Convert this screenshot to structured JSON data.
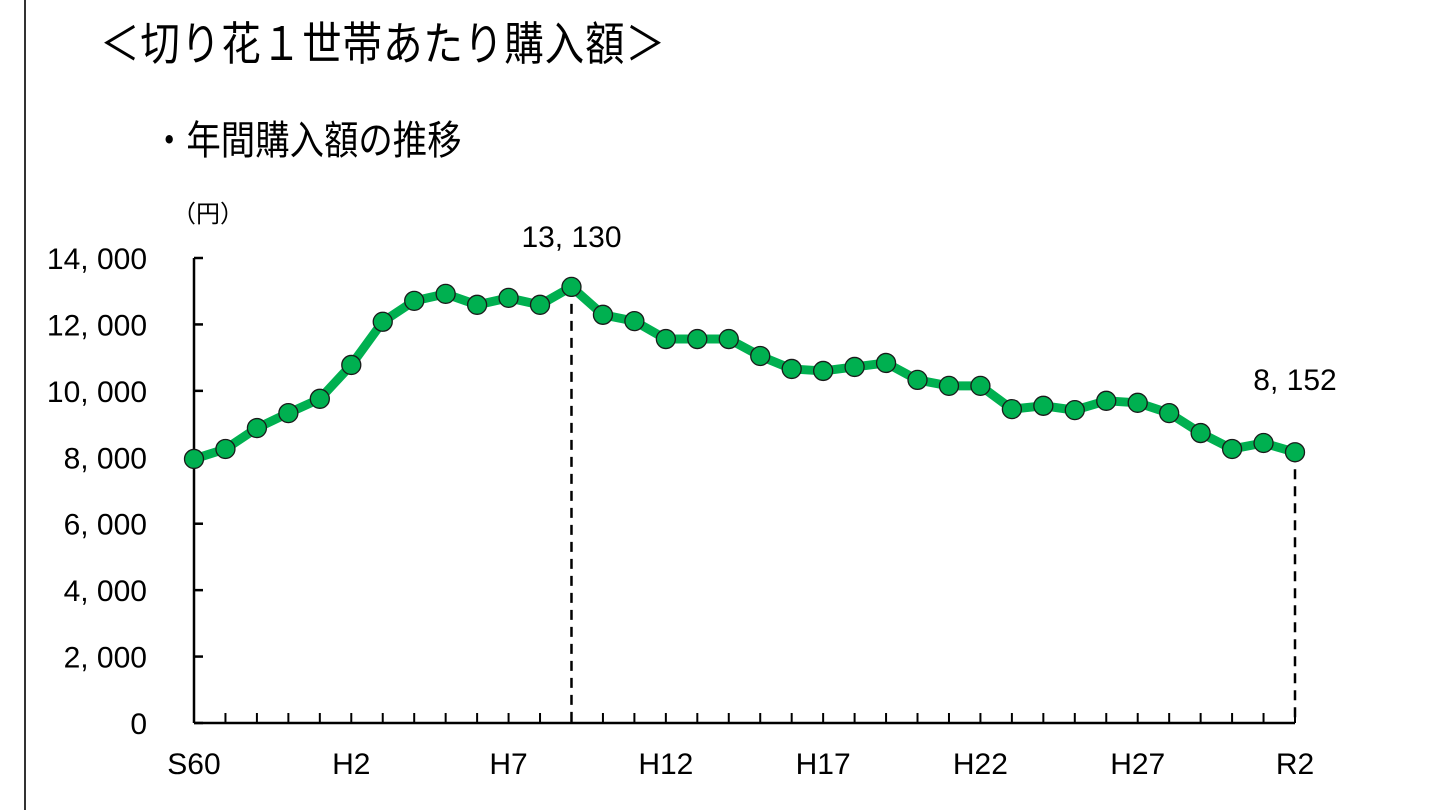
{
  "page": {
    "title": "＜切り花１世帯あたり購入額＞",
    "subtitle": "・年間購入額の推移"
  },
  "chart_data": {
    "type": "line",
    "title": "＜切り花１世帯あたり購入額＞",
    "subtitle": "・年間購入額の推移",
    "xlabel": "",
    "ylabel": "（円）",
    "ylim": [
      0,
      14000
    ],
    "yticks": [
      0,
      2000,
      4000,
      6000,
      8000,
      10000,
      12000,
      14000
    ],
    "ytick_labels": [
      "0",
      "2, 000",
      "4, 000",
      "6, 000",
      "8, 000",
      "10, 000",
      "12, 000",
      "14, 000"
    ],
    "x": [
      "S60",
      "S61",
      "S62",
      "S63",
      "H1",
      "H2",
      "H3",
      "H4",
      "H5",
      "H6",
      "H7",
      "H8",
      "H9",
      "H10",
      "H11",
      "H12",
      "H13",
      "H14",
      "H15",
      "H16",
      "H17",
      "H18",
      "H19",
      "H20",
      "H21",
      "H22",
      "H23",
      "H24",
      "H25",
      "H26",
      "H27",
      "H28",
      "H29",
      "H30",
      "R1",
      "R2"
    ],
    "xtick_labels_shown": [
      "S60",
      "H2",
      "H7",
      "H12",
      "H17",
      "H22",
      "H27",
      "R2"
    ],
    "grid": false,
    "legend": null,
    "series": [
      {
        "name": "年間購入額",
        "color": "#00b050",
        "values": [
          7950,
          8250,
          8880,
          9330,
          9760,
          10780,
          12080,
          12710,
          12920,
          12590,
          12800,
          12590,
          13130,
          12290,
          12100,
          11560,
          11560,
          11560,
          11050,
          10660,
          10600,
          10720,
          10840,
          10330,
          10150,
          10150,
          9450,
          9550,
          9420,
          9700,
          9640,
          9330,
          8730,
          8250,
          8430,
          8152
        ]
      }
    ],
    "annotations": [
      {
        "x": "H9",
        "value": 13130,
        "label": "13, 130",
        "dashed_dropline": true
      },
      {
        "x": "R2",
        "value": 8152,
        "label": "8, 152",
        "dashed_dropline": true
      }
    ]
  }
}
